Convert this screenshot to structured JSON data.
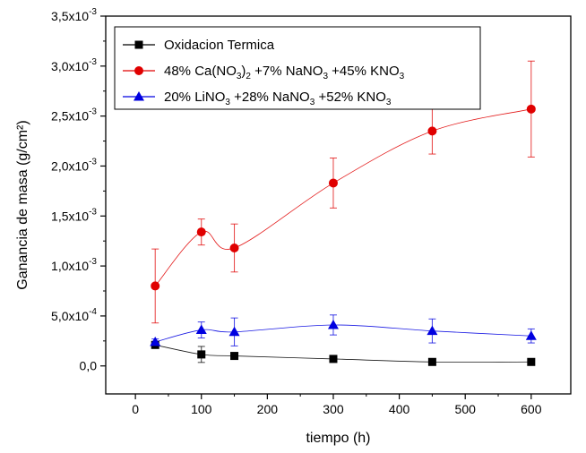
{
  "chart_data": {
    "type": "scatter",
    "xlabel": "tiempo (h)",
    "ylabel": "Ganancia de masa (g/cm²)",
    "xlim": [
      -45,
      660
    ],
    "ylim": [
      -0.00028,
      0.0035
    ],
    "x_ticks": [
      0,
      100,
      200,
      300,
      400,
      500,
      600
    ],
    "x_tick_labels": [
      "0",
      "100",
      "200",
      "300",
      "400",
      "500",
      "600"
    ],
    "y_ticks": [
      0,
      0.0005,
      0.001,
      0.0015,
      0.002,
      0.0025,
      0.003,
      0.0035
    ],
    "y_tick_labels": [
      {
        "mant": "0,0",
        "exp": ""
      },
      {
        "mant": "5,0x10",
        "exp": "-4"
      },
      {
        "mant": "1,0x10",
        "exp": "-3"
      },
      {
        "mant": "1,5x10",
        "exp": "-3"
      },
      {
        "mant": "2,0x10",
        "exp": "-3"
      },
      {
        "mant": "2,5x10",
        "exp": "-3"
      },
      {
        "mant": "3,0x10",
        "exp": "-3"
      },
      {
        "mant": "3,5x10",
        "exp": "-3"
      }
    ],
    "grid": false,
    "legend_position": "top-left",
    "series": [
      {
        "id": "oxidacion",
        "legend_parts": [
          {
            "t": "Oxidacion Termica"
          }
        ],
        "color": "#000000",
        "marker": "square",
        "x": [
          30,
          100,
          150,
          300,
          450,
          600
        ],
        "y": [
          0.00021,
          0.000115,
          0.0001,
          7e-05,
          4e-05,
          4e-05
        ],
        "err": [
          3e-05,
          8e-05,
          0,
          0,
          0,
          0
        ]
      },
      {
        "id": "calcio",
        "legend_parts": [
          {
            "t": "48% Ca(NO"
          },
          {
            "t": "3",
            "sub": true
          },
          {
            "t": ")"
          },
          {
            "t": "2",
            "sub": true
          },
          {
            "t": " +7% NaNO"
          },
          {
            "t": "3",
            "sub": true
          },
          {
            "t": " +45% KNO"
          },
          {
            "t": "3",
            "sub": true
          }
        ],
        "color": "#e00000",
        "marker": "circle",
        "x": [
          30,
          100,
          150,
          300,
          450,
          600
        ],
        "y": [
          0.0008,
          0.00134,
          0.00118,
          0.00183,
          0.00235,
          0.00257
        ],
        "err": [
          0.00037,
          0.00013,
          0.00024,
          0.00025,
          0.00023,
          0.00048
        ]
      },
      {
        "id": "litio",
        "legend_parts": [
          {
            "t": "20% LiNO"
          },
          {
            "t": "3",
            "sub": true
          },
          {
            "t": " +28% NaNO"
          },
          {
            "t": "3",
            "sub": true
          },
          {
            "t": " +52% KNO"
          },
          {
            "t": "3",
            "sub": true
          }
        ],
        "color": "#0000e0",
        "marker": "triangle",
        "x": [
          30,
          100,
          150,
          300,
          450,
          600
        ],
        "y": [
          0.00024,
          0.00036,
          0.00034,
          0.00041,
          0.00035,
          0.0003
        ],
        "err": [
          3e-05,
          8e-05,
          0.00014,
          0.0001,
          0.00012,
          7e-05
        ]
      }
    ]
  }
}
